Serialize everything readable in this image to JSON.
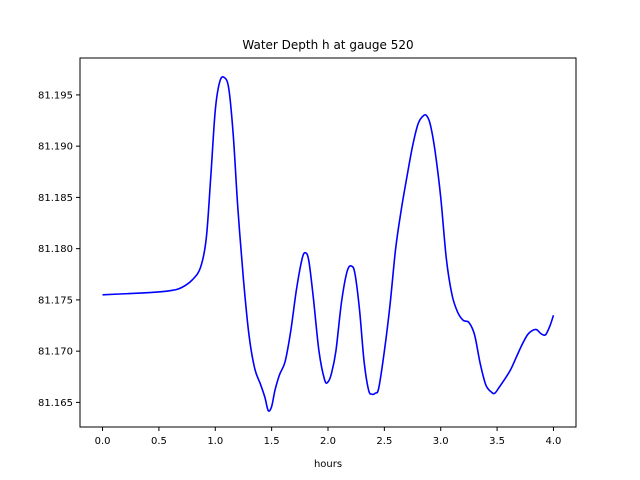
{
  "chart_data": {
    "type": "line",
    "title": "Water Depth h at gauge 520",
    "xlabel": "hours",
    "ylabel": "",
    "xlim": [
      -0.2,
      4.2
    ],
    "ylim": [
      81.1626,
      81.1986
    ],
    "xticks": [
      0.0,
      0.5,
      1.0,
      1.5,
      2.0,
      2.5,
      3.0,
      3.5,
      4.0
    ],
    "xtick_labels": [
      "0.0",
      "0.5",
      "1.0",
      "1.5",
      "2.0",
      "2.5",
      "3.0",
      "3.5",
      "4.0"
    ],
    "yticks": [
      81.165,
      81.17,
      81.175,
      81.18,
      81.185,
      81.19,
      81.195
    ],
    "ytick_labels": [
      "81.165",
      "81.170",
      "81.175",
      "81.180",
      "81.185",
      "81.190",
      "81.195"
    ],
    "grid": false,
    "series": [
      {
        "name": "",
        "color": "#0000ff",
        "x": [
          0.0,
          0.2,
          0.4,
          0.6,
          0.7,
          0.8,
          0.87,
          0.92,
          0.96,
          1.0,
          1.04,
          1.08,
          1.12,
          1.16,
          1.2,
          1.25,
          1.3,
          1.35,
          1.4,
          1.44,
          1.47,
          1.5,
          1.53,
          1.57,
          1.62,
          1.67,
          1.72,
          1.77,
          1.8,
          1.83,
          1.87,
          1.92,
          1.97,
          2.0,
          2.03,
          2.07,
          2.12,
          2.17,
          2.21,
          2.24,
          2.28,
          2.32,
          2.36,
          2.39,
          2.42,
          2.45,
          2.5,
          2.55,
          2.6,
          2.65,
          2.7,
          2.75,
          2.8,
          2.85,
          2.88,
          2.91,
          2.95,
          3.0,
          3.05,
          3.1,
          3.15,
          3.2,
          3.25,
          3.3,
          3.35,
          3.4,
          3.45,
          3.48,
          3.52,
          3.57,
          3.62,
          3.67,
          3.72,
          3.77,
          3.81,
          3.85,
          3.89,
          3.93,
          3.97,
          4.0
        ],
        "y": [
          81.1755,
          81.1756,
          81.1757,
          81.1759,
          81.1762,
          81.177,
          81.1782,
          81.181,
          81.187,
          81.1935,
          81.1963,
          81.1967,
          81.1956,
          81.191,
          81.184,
          81.177,
          81.1715,
          81.1683,
          81.1668,
          81.1655,
          81.1642,
          81.1646,
          81.1662,
          81.1677,
          81.169,
          81.172,
          81.176,
          81.179,
          81.1796,
          81.1788,
          81.1752,
          81.17,
          81.1672,
          81.167,
          81.1678,
          81.17,
          81.1748,
          81.1778,
          81.1783,
          81.1775,
          81.174,
          81.169,
          81.1662,
          81.1658,
          81.1659,
          81.1664,
          81.17,
          81.1745,
          81.18,
          81.1838,
          81.187,
          81.19,
          81.1922,
          81.193,
          81.1929,
          81.192,
          81.1895,
          81.185,
          81.179,
          81.1755,
          81.1738,
          81.173,
          81.1728,
          81.1716,
          81.1688,
          81.1667,
          81.166,
          81.1659,
          81.1665,
          81.1673,
          81.1682,
          81.1694,
          81.1706,
          81.1716,
          81.172,
          81.1721,
          81.1717,
          81.1716,
          81.1725,
          81.1735
        ]
      }
    ]
  }
}
